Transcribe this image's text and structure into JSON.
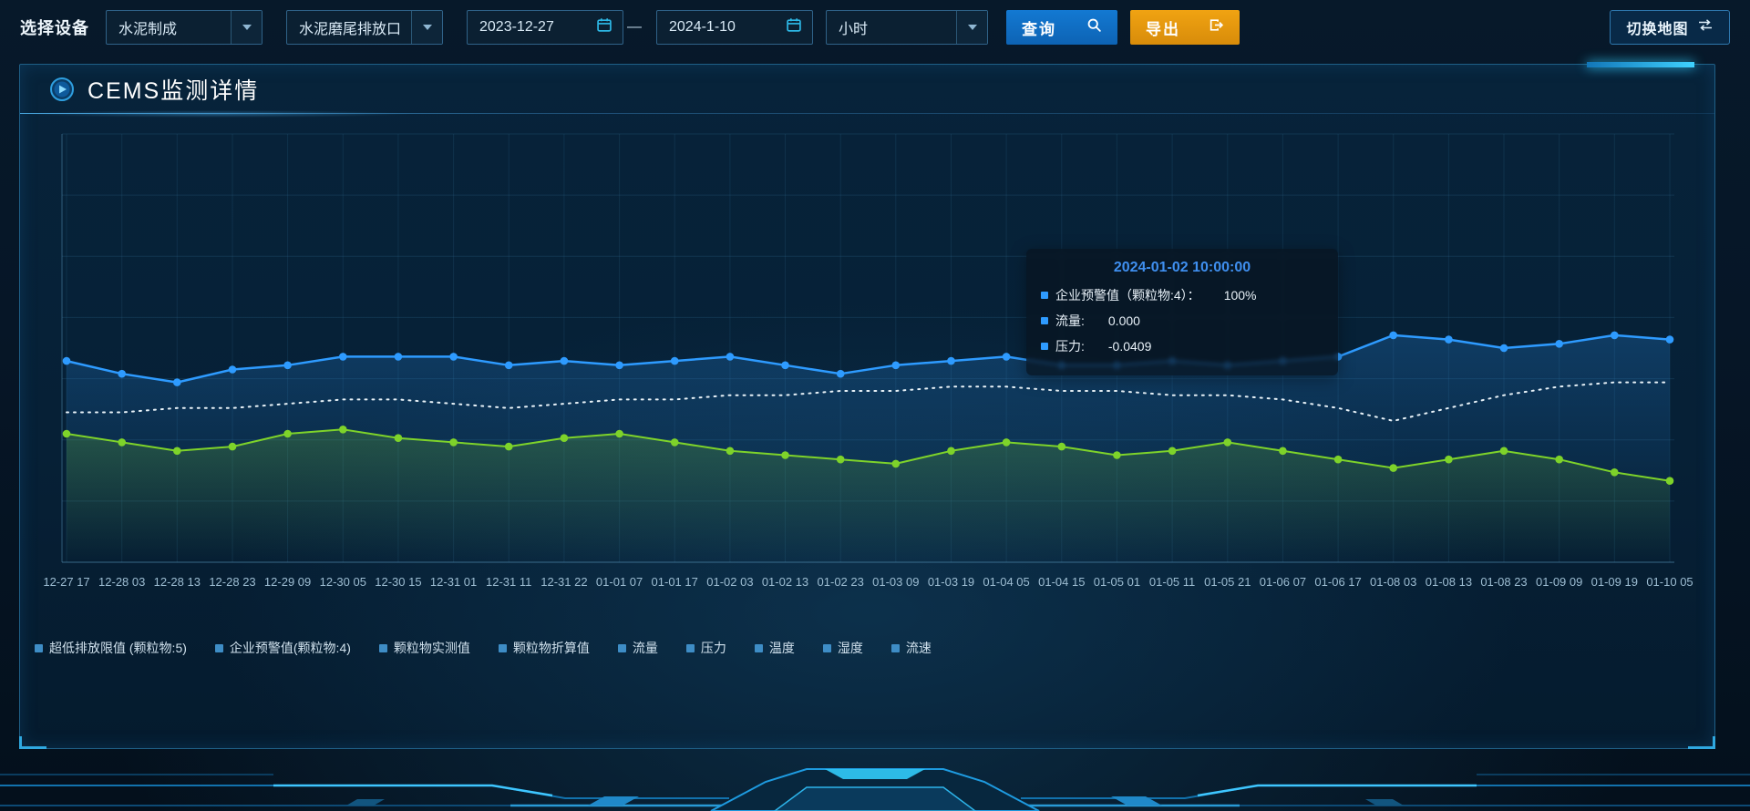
{
  "toolbar": {
    "device_label": "选择设备",
    "device_select": "水泥制成",
    "outlet_select": "水泥磨尾排放口",
    "date_start": "2023-12-27",
    "date_separator": "—",
    "date_end": "2024-1-10",
    "interval_select": "小时",
    "query_button": "查询",
    "export_button": "导出",
    "switch_map_button": "切换地图"
  },
  "panel": {
    "title": "CEMS监测详情"
  },
  "tooltip": {
    "title": "2024-01-02 10:00:00",
    "rows": [
      {
        "label": "企业预警值（颗粒物:4）：",
        "value": "100%"
      },
      {
        "label": "流量:",
        "value": "0.000"
      },
      {
        "label": "压力:",
        "value": "-0.0409"
      }
    ]
  },
  "legend": {
    "items": [
      "超低排放限值 (颗粒物:5)",
      "企业预警值(颗粒物:4)",
      "颗粒物实测值",
      "颗粒物折算值",
      "流量",
      "压力",
      "温度",
      "湿度",
      "流速"
    ]
  },
  "icons": {
    "search": "magnifier",
    "export": "box-arrow-right",
    "calendar": "calendar",
    "chevron": "triangle-down",
    "switch_map": "swap-arrows",
    "panel_header": "play-circle"
  },
  "colors": {
    "accent_blue": "#2e9bff",
    "accent_cyan": "#2fc3f0",
    "accent_orange": "#e8980e",
    "accent_green": "#7ed32a"
  },
  "chart_data": {
    "type": "line",
    "title": "",
    "xlabel": "",
    "ylabel": "",
    "ylim": [
      0,
      100
    ],
    "grid": true,
    "legend_position": "bottom",
    "x_labels": [
      "12-27 17",
      "12-28 03",
      "12-28 13",
      "12-28 23",
      "12-29 09",
      "12-30 05",
      "12-30 15",
      "12-31 01",
      "12-31 11",
      "12-31 22",
      "01-01 07",
      "01-01 17",
      "01-02 03",
      "01-02 13",
      "01-02 23",
      "01-03 09",
      "01-03 19",
      "01-04 05",
      "01-04 15",
      "01-05 01",
      "01-05 11",
      "01-05 21",
      "01-06 07",
      "01-06 17",
      "01-08 03",
      "01-08 13",
      "01-08 23",
      "01-09 09",
      "01-09 19",
      "01-10 05"
    ],
    "series": [
      {
        "name": "流量",
        "color": "#2e9bff",
        "line": "solid",
        "width": 2.5,
        "points": true,
        "area": true,
        "values": [
          47,
          44,
          42,
          45,
          46,
          48,
          48,
          48,
          46,
          47,
          46,
          47,
          48,
          46,
          44,
          46,
          47,
          48,
          46,
          46,
          47,
          46,
          47,
          48,
          53,
          52,
          50,
          51,
          53,
          52
        ]
      },
      {
        "name": "企业预警值(颗粒物:4)",
        "color": "#e8f2f8",
        "line": "dotted",
        "width": 2,
        "points": false,
        "area": false,
        "values": [
          35,
          35,
          36,
          36,
          37,
          38,
          38,
          37,
          36,
          37,
          38,
          38,
          39,
          39,
          40,
          40,
          41,
          41,
          40,
          40,
          39,
          39,
          38,
          36,
          33,
          36,
          39,
          41,
          42,
          42
        ]
      },
      {
        "name": "压力",
        "color": "#7ed32a",
        "line": "solid",
        "width": 2,
        "points": true,
        "area": true,
        "values": [
          30,
          28,
          26,
          27,
          30,
          31,
          29,
          28,
          27,
          29,
          30,
          28,
          26,
          25,
          24,
          23,
          26,
          28,
          27,
          25,
          26,
          28,
          26,
          24,
          22,
          24,
          26,
          24,
          21,
          19
        ]
      }
    ]
  }
}
